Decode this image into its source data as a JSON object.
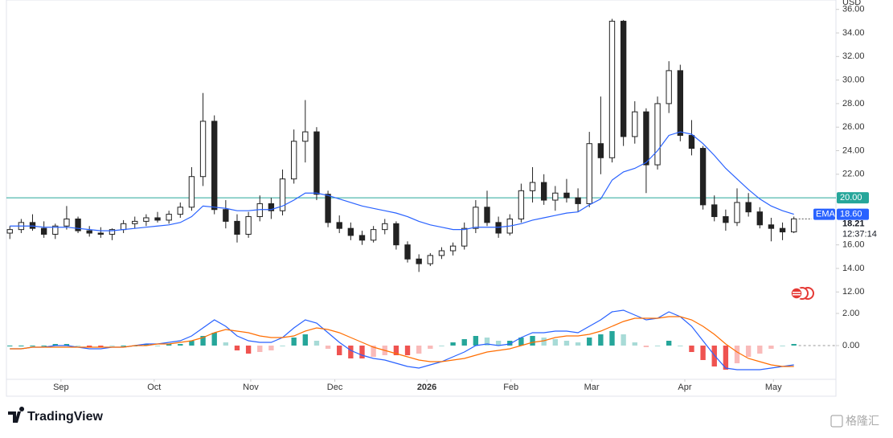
{
  "chart_data": {
    "type": "candlestick",
    "currency": "USD",
    "ylim": [
      11.2,
      36.8
    ],
    "yticks": [
      {
        "value": 12,
        "label": "12.00"
      },
      {
        "value": 14,
        "label": "14.00"
      },
      {
        "value": 16,
        "label": "16.00"
      },
      {
        "value": 22,
        "label": "22.00"
      },
      {
        "value": 24,
        "label": "24.00"
      },
      {
        "value": 26,
        "label": "26.00"
      },
      {
        "value": 28,
        "label": "28.00"
      },
      {
        "value": 30,
        "label": "30.00"
      },
      {
        "value": 32,
        "label": "32.00"
      },
      {
        "value": 34,
        "label": "34.00"
      },
      {
        "value": 36,
        "label": "36.00"
      }
    ],
    "xlim": [
      -0.3,
      72.7
    ],
    "xticks": [
      {
        "value": 4.5,
        "label": "Sep"
      },
      {
        "value": 12.7,
        "label": "Oct"
      },
      {
        "value": 21.2,
        "label": "Nov"
      },
      {
        "value": 28.6,
        "label": "Dec"
      },
      {
        "value": 36.7,
        "label": "2026"
      },
      {
        "value": 44.1,
        "label": "Feb"
      },
      {
        "value": 51.2,
        "label": "Mar"
      },
      {
        "value": 59.4,
        "label": "Apr"
      },
      {
        "value": 67.2,
        "label": "May"
      }
    ],
    "ohlc": [
      [
        17.0,
        17.6,
        16.5,
        17.3
      ],
      [
        17.3,
        18.2,
        17.0,
        17.9
      ],
      [
        17.9,
        18.6,
        17.2,
        17.4
      ],
      [
        17.4,
        18.0,
        16.6,
        16.9
      ],
      [
        16.9,
        17.8,
        16.5,
        17.6
      ],
      [
        17.6,
        19.3,
        17.3,
        18.2
      ],
      [
        18.2,
        18.4,
        17.0,
        17.2
      ],
      [
        17.2,
        17.6,
        16.7,
        17.0
      ],
      [
        17.0,
        17.5,
        16.6,
        16.9
      ],
      [
        16.9,
        17.4,
        16.4,
        17.3
      ],
      [
        17.3,
        18.1,
        17.0,
        17.8
      ],
      [
        17.8,
        18.4,
        17.4,
        18.0
      ],
      [
        18.0,
        18.6,
        17.6,
        18.3
      ],
      [
        18.3,
        18.8,
        17.9,
        18.1
      ],
      [
        18.1,
        18.9,
        17.8,
        18.6
      ],
      [
        18.6,
        19.6,
        18.3,
        19.2
      ],
      [
        19.2,
        22.6,
        18.9,
        21.8
      ],
      [
        21.8,
        28.9,
        21.0,
        26.5
      ],
      [
        26.5,
        27.0,
        18.6,
        19.0
      ],
      [
        19.0,
        19.8,
        17.4,
        18.0
      ],
      [
        18.0,
        18.6,
        16.2,
        16.9
      ],
      [
        16.9,
        18.8,
        16.6,
        18.4
      ],
      [
        18.4,
        20.2,
        18.0,
        19.5
      ],
      [
        19.5,
        20.0,
        18.2,
        18.9
      ],
      [
        18.9,
        22.4,
        18.5,
        21.6
      ],
      [
        21.6,
        25.8,
        21.2,
        24.8
      ],
      [
        24.8,
        28.3,
        23.0,
        25.6
      ],
      [
        25.6,
        26.0,
        19.8,
        20.3
      ],
      [
        20.3,
        20.6,
        17.5,
        17.9
      ],
      [
        17.9,
        18.5,
        17.0,
        17.4
      ],
      [
        17.4,
        17.9,
        16.4,
        16.8
      ],
      [
        16.8,
        17.2,
        16.0,
        16.4
      ],
      [
        16.4,
        17.6,
        16.2,
        17.3
      ],
      [
        17.3,
        18.2,
        16.9,
        17.8
      ],
      [
        17.8,
        18.0,
        15.6,
        16.0
      ],
      [
        16.0,
        16.3,
        14.5,
        14.8
      ],
      [
        14.8,
        15.2,
        13.7,
        14.4
      ],
      [
        14.4,
        15.3,
        14.2,
        15.1
      ],
      [
        15.1,
        15.8,
        14.8,
        15.5
      ],
      [
        15.5,
        16.2,
        15.1,
        15.9
      ],
      [
        15.9,
        17.9,
        15.6,
        17.4
      ],
      [
        17.4,
        19.8,
        17.0,
        19.2
      ],
      [
        19.2,
        20.6,
        17.6,
        17.9
      ],
      [
        17.9,
        18.4,
        16.6,
        17.0
      ],
      [
        17.0,
        18.6,
        16.8,
        18.2
      ],
      [
        18.2,
        21.2,
        17.9,
        20.6
      ],
      [
        20.6,
        22.6,
        19.6,
        21.3
      ],
      [
        21.3,
        22.0,
        19.4,
        19.8
      ],
      [
        19.8,
        21.0,
        18.9,
        20.4
      ],
      [
        20.4,
        21.6,
        19.6,
        20.0
      ],
      [
        20.0,
        20.8,
        18.8,
        19.5
      ],
      [
        19.5,
        25.6,
        19.2,
        24.6
      ],
      [
        24.6,
        28.6,
        22.0,
        23.4
      ],
      [
        23.4,
        35.2,
        23.0,
        35.0
      ],
      [
        35.0,
        35.1,
        24.4,
        25.2
      ],
      [
        25.2,
        28.2,
        24.6,
        27.3
      ],
      [
        27.3,
        27.6,
        20.4,
        22.8
      ],
      [
        22.8,
        28.6,
        22.4,
        28.0
      ],
      [
        28.0,
        31.6,
        27.2,
        30.8
      ],
      [
        30.8,
        31.3,
        24.8,
        25.3
      ],
      [
        25.3,
        26.6,
        23.6,
        24.2
      ],
      [
        24.2,
        24.4,
        19.0,
        19.4
      ],
      [
        19.4,
        20.2,
        18.0,
        18.4
      ],
      [
        18.4,
        19.0,
        17.2,
        17.9
      ],
      [
        17.9,
        20.8,
        17.6,
        19.6
      ],
      [
        19.6,
        20.4,
        18.4,
        18.8
      ],
      [
        18.8,
        19.2,
        17.4,
        17.7
      ],
      [
        17.7,
        18.3,
        16.3,
        17.4
      ],
      [
        17.4,
        17.9,
        16.4,
        17.1
      ],
      [
        17.1,
        18.4,
        17.0,
        18.21
      ]
    ],
    "last_price_label": "18.21",
    "countdown": "12:37:14",
    "hline": {
      "value": 20,
      "label": "20.00",
      "color": "#26a69a"
    },
    "ema": {
      "name": "EMA",
      "color": "#2962ff",
      "value_label": "18.60",
      "values": [
        17.6,
        17.6,
        17.6,
        17.5,
        17.5,
        17.5,
        17.4,
        17.3,
        17.2,
        17.2,
        17.3,
        17.4,
        17.5,
        17.6,
        17.7,
        17.9,
        18.4,
        19.3,
        19.2,
        19.1,
        18.9,
        18.9,
        19.0,
        19.0,
        19.3,
        19.8,
        20.4,
        20.4,
        20.2,
        19.9,
        19.6,
        19.3,
        19.1,
        18.9,
        18.7,
        18.4,
        18.0,
        17.7,
        17.5,
        17.3,
        17.3,
        17.5,
        17.5,
        17.5,
        17.6,
        17.8,
        18.1,
        18.3,
        18.5,
        18.7,
        18.8,
        19.4,
        19.9,
        21.5,
        22.2,
        22.5,
        23.0,
        24.0,
        25.3,
        25.6,
        25.4,
        24.6,
        23.6,
        22.5,
        21.6,
        20.7,
        19.9,
        19.3,
        18.9,
        18.6
      ]
    },
    "macd": {
      "ylim": [
        -2.0,
        2.6
      ],
      "yticks": [
        {
          "value": 0,
          "label": "0.00"
        },
        {
          "value": 2,
          "label": "2.00"
        }
      ],
      "macd": {
        "color": "#2962ff",
        "values": [
          -0.2,
          -0.2,
          -0.1,
          -0.1,
          0.0,
          0.0,
          -0.1,
          -0.2,
          -0.2,
          -0.1,
          -0.1,
          0.0,
          0.1,
          0.1,
          0.2,
          0.3,
          0.6,
          1.1,
          1.6,
          1.2,
          0.6,
          0.3,
          0.2,
          0.2,
          0.5,
          1.1,
          1.6,
          1.4,
          0.8,
          0.2,
          -0.3,
          -0.6,
          -0.8,
          -0.9,
          -1.1,
          -1.3,
          -1.4,
          -1.2,
          -1.0,
          -0.7,
          -0.4,
          0.0,
          0.1,
          0.0,
          0.1,
          0.5,
          0.8,
          0.8,
          0.9,
          0.9,
          0.8,
          1.2,
          1.6,
          2.1,
          2.2,
          1.9,
          1.6,
          1.7,
          2.1,
          1.8,
          1.2,
          0.3,
          -0.6,
          -1.4,
          -1.5,
          -1.5,
          -1.5,
          -1.4,
          -1.3,
          -1.2
        ]
      },
      "signal": {
        "color": "#ff6d00",
        "values": [
          -0.2,
          -0.2,
          -0.1,
          -0.1,
          -0.1,
          -0.1,
          -0.1,
          -0.1,
          -0.1,
          -0.1,
          -0.1,
          0.0,
          0.0,
          0.1,
          0.1,
          0.2,
          0.3,
          0.5,
          0.8,
          1.0,
          0.9,
          0.8,
          0.6,
          0.5,
          0.5,
          0.6,
          0.9,
          1.1,
          1.0,
          0.8,
          0.5,
          0.2,
          -0.1,
          -0.3,
          -0.5,
          -0.7,
          -0.9,
          -1.0,
          -1.0,
          -0.9,
          -0.8,
          -0.6,
          -0.4,
          -0.3,
          -0.2,
          0.0,
          0.2,
          0.3,
          0.5,
          0.6,
          0.6,
          0.7,
          0.9,
          1.2,
          1.5,
          1.7,
          1.7,
          1.7,
          1.8,
          1.8,
          1.6,
          1.2,
          0.7,
          0.1,
          -0.4,
          -0.8,
          -1.0,
          -1.2,
          -1.3,
          -1.3
        ]
      },
      "histogram": {
        "up_color": "#26a69a",
        "down_color": "#ef5350",
        "values": [
          0,
          0,
          0,
          0,
          0.1,
          0.1,
          0,
          -0.1,
          -0.1,
          0,
          0,
          0,
          0.1,
          0,
          0.1,
          0.1,
          0.3,
          0.6,
          0.8,
          0.2,
          -0.3,
          -0.5,
          -0.4,
          -0.3,
          0,
          0.5,
          0.7,
          0.3,
          -0.2,
          -0.6,
          -0.8,
          -0.8,
          -0.7,
          -0.6,
          -0.6,
          -0.6,
          -0.5,
          -0.2,
          0,
          0.2,
          0.4,
          0.6,
          0.5,
          0.3,
          0.3,
          0.5,
          0.6,
          0.5,
          0.4,
          0.3,
          0.2,
          0.5,
          0.7,
          0.9,
          0.7,
          0.2,
          -0.1,
          0,
          0.3,
          0,
          -0.4,
          -0.9,
          -1.3,
          -1.5,
          -1.1,
          -0.7,
          -0.5,
          -0.2,
          0,
          0.1
        ]
      }
    }
  },
  "footer": {
    "brand": "TradingView",
    "watermark": "格隆汇"
  }
}
